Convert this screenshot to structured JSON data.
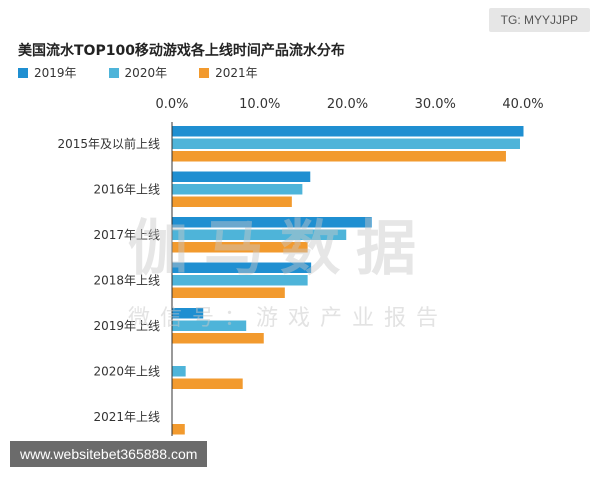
{
  "tag_text": "TG: MYYJJPP",
  "url_text": "www.websitebet365888.com",
  "watermark": {
    "main": "伽马数据",
    "sub": "微信号：游戏产业报告"
  },
  "colors": {
    "s2019": "#1f8fd1",
    "s2020": "#4eb4d9",
    "s2021": "#f29a2e"
  },
  "chart_data": {
    "type": "bar",
    "orientation": "horizontal",
    "title": "美国流水TOP100移动游戏各上线时间产品流水分布",
    "categories": [
      "2015年及以前上线",
      "2016年上线",
      "2017年上线",
      "2018年上线",
      "2019年上线",
      "2020年上线",
      "2021年上线"
    ],
    "series": [
      {
        "name": "2019年",
        "values": [
          40.0,
          15.7,
          22.7,
          15.8,
          3.5,
          0,
          0
        ]
      },
      {
        "name": "2020年",
        "values": [
          39.6,
          14.8,
          19.8,
          15.4,
          8.4,
          1.5,
          0
        ]
      },
      {
        "name": "2021年",
        "values": [
          38.0,
          13.6,
          15.4,
          12.8,
          10.4,
          8.0,
          1.4
        ]
      }
    ],
    "x_ticks": [
      "0.0%",
      "10.0%",
      "20.0%",
      "30.0%",
      "40.0%"
    ],
    "xlim": [
      0,
      40
    ],
    "xlabel": "",
    "ylabel": "",
    "legend_position": "top-left",
    "grid": false
  }
}
